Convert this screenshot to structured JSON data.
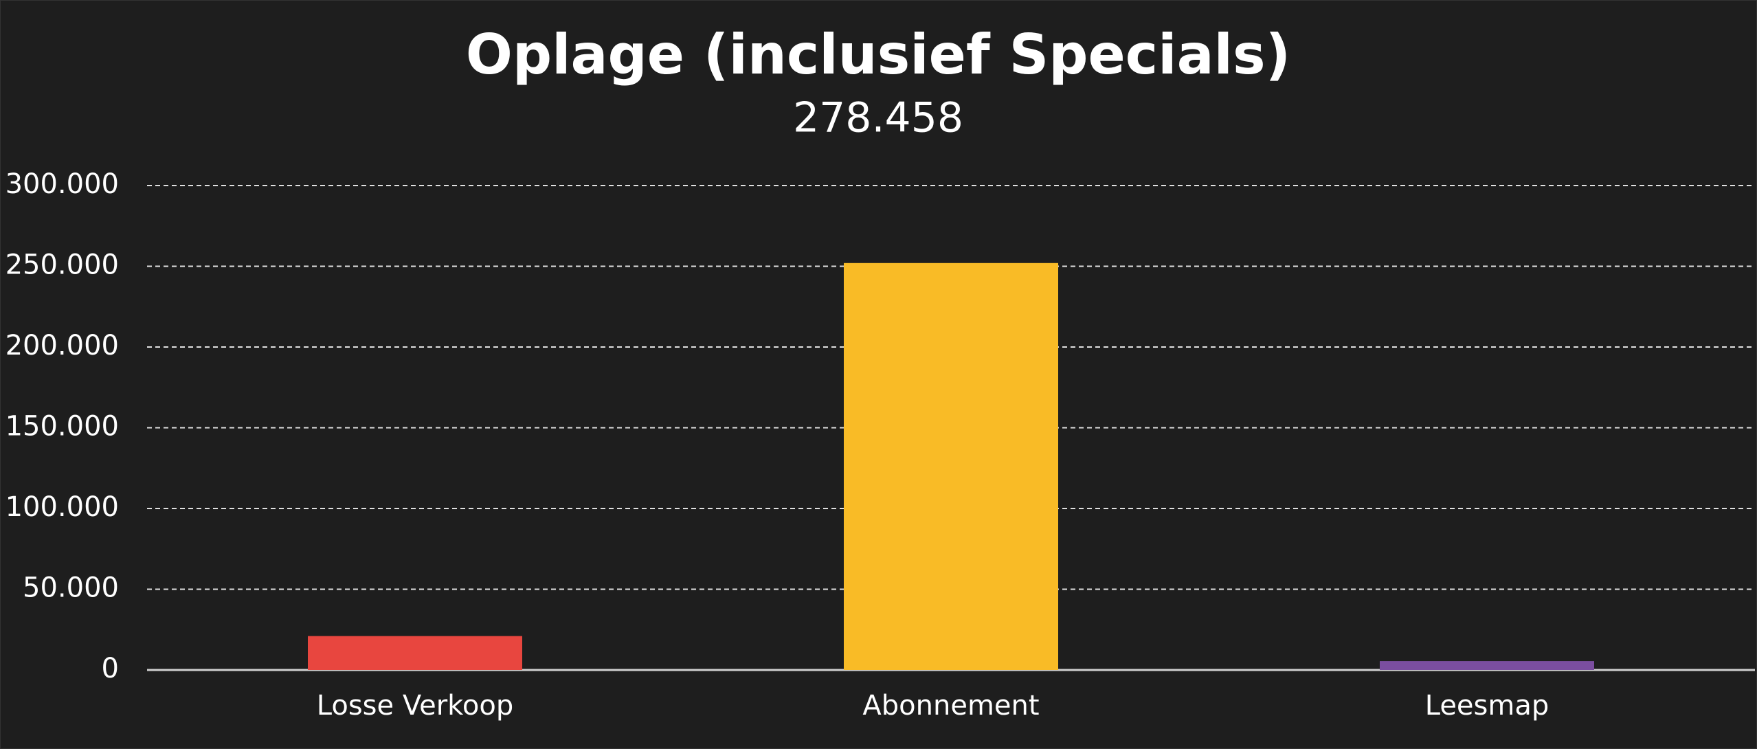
{
  "chart_data": {
    "type": "bar",
    "title": "Oplage (inclusief Specials)",
    "subtitle": "278.458",
    "categories": [
      "Losse Verkoop",
      "Abonnement",
      "Leesmap"
    ],
    "values": [
      21000,
      252000,
      5500
    ],
    "colors": [
      "#e8463f",
      "#f9bb26",
      "#7b4ea0"
    ],
    "ylim": [
      0,
      300000
    ],
    "yticks": [
      0,
      {
        "value": 50000,
        "label": "50.000"
      },
      {
        "value": 100000,
        "label": "100.000"
      },
      {
        "value": 150000,
        "label": "150.000"
      },
      {
        "value": 200000,
        "label": "200.000"
      },
      {
        "value": 250000,
        "label": "250.000"
      },
      {
        "value": 300000,
        "label": "300.000"
      }
    ],
    "grid": true
  }
}
